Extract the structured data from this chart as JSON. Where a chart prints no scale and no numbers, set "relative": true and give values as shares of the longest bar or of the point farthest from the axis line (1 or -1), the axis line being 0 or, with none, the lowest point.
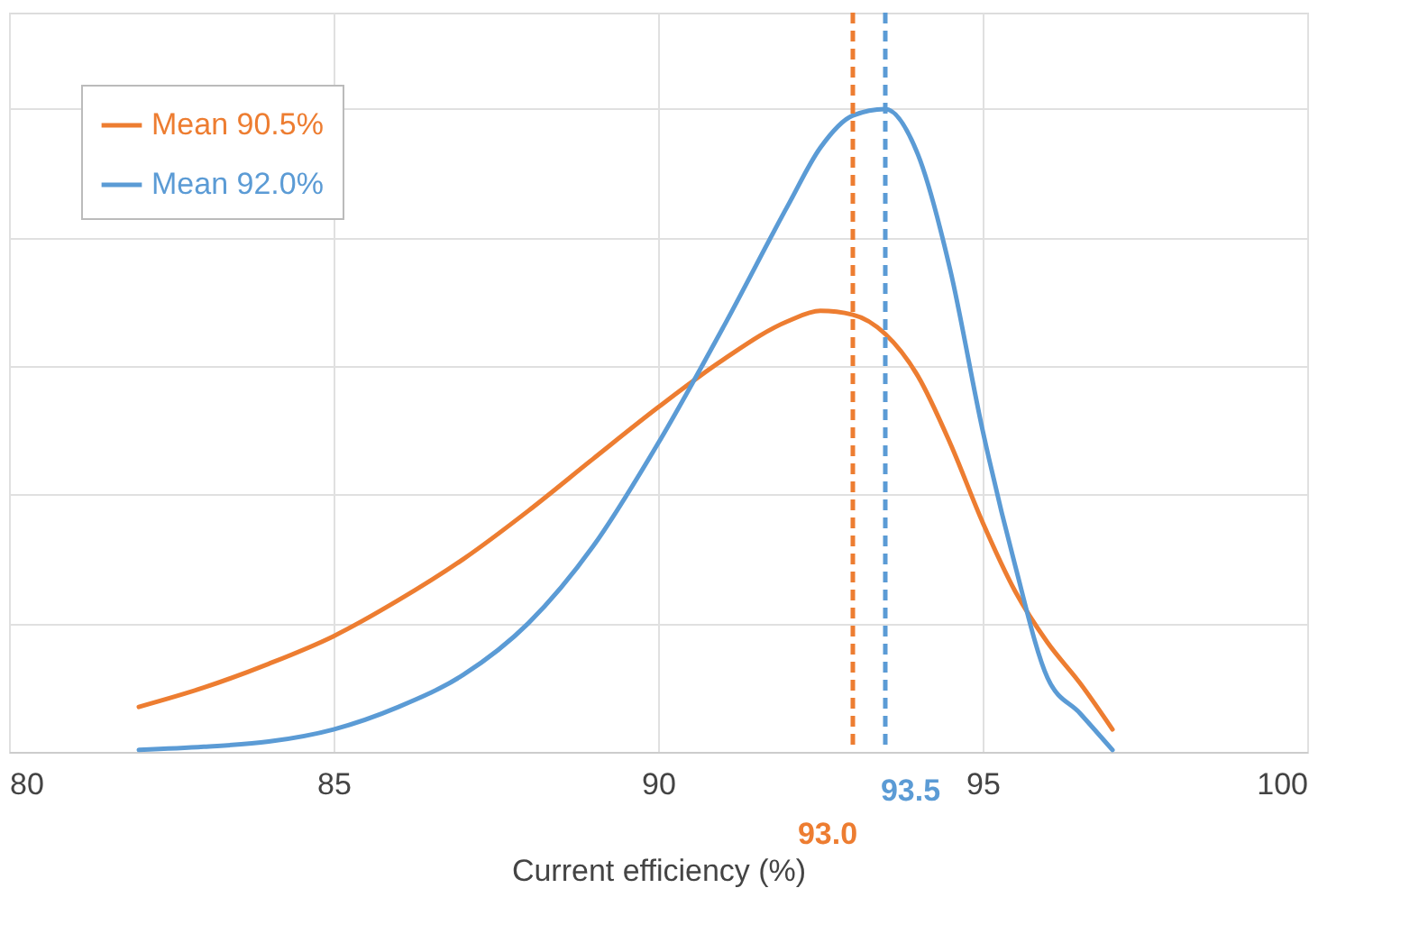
{
  "chart_data": {
    "type": "line",
    "relative": true,
    "xlabel": "Current efficiency (%)",
    "xlim": [
      80,
      100
    ],
    "xticks": [
      80,
      85,
      90,
      95,
      100
    ],
    "grid": true,
    "legend": "top left",
    "marker": "none",
    "line_style": "solid",
    "series": [
      {
        "name": "Mean 90.5%",
        "color": "#ed7d31",
        "x": [
          82,
          83,
          84,
          85,
          86,
          87,
          88,
          89,
          90,
          91,
          92,
          92.5,
          93,
          93.5,
          94,
          94.5,
          95,
          95.5,
          96,
          96.5,
          97
        ],
        "values": [
          0.07,
          0.1,
          0.137,
          0.18,
          0.236,
          0.3,
          0.375,
          0.456,
          0.536,
          0.61,
          0.67,
          0.686,
          0.68,
          0.65,
          0.585,
          0.48,
          0.357,
          0.25,
          0.17,
          0.107,
          0.035
        ]
      },
      {
        "name": "Mean 92.0%",
        "color": "#5b9bd5",
        "x": [
          82,
          83,
          84,
          85,
          86,
          87,
          88,
          89,
          90,
          91,
          92,
          92.5,
          93,
          93.5,
          94,
          94.5,
          95,
          95.5,
          96,
          96.5,
          97
        ],
        "values": [
          0.003,
          0.008,
          0.016,
          0.035,
          0.07,
          0.12,
          0.2,
          0.32,
          0.48,
          0.66,
          0.85,
          0.94,
          0.99,
          1.0,
          0.93,
          0.75,
          0.5,
          0.29,
          0.115,
          0.06,
          0.003
        ]
      }
    ],
    "ref_lines": [
      {
        "axis": "x",
        "value": 93.0,
        "label": "93.0",
        "color": "#ed7d31",
        "line_style": "dashed"
      },
      {
        "axis": "x",
        "value": 93.5,
        "label": "93.5",
        "color": "#5b9bd5",
        "line_style": "dashed"
      }
    ]
  }
}
